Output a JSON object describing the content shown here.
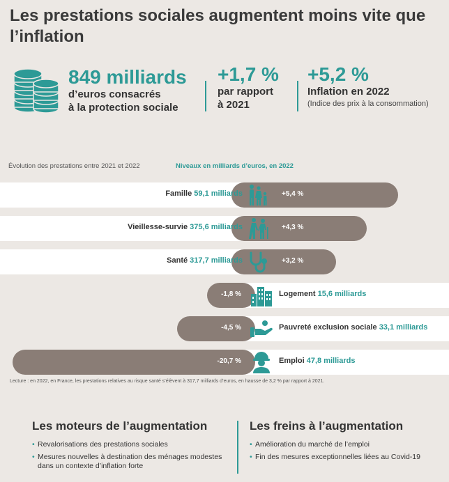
{
  "title": "Les prestations sociales augmentent moins vite que l’inflation",
  "kpi": {
    "total_value": "849 milliards",
    "total_sub1": "d’euros consacrés",
    "total_sub2": "à la protection sociale",
    "growth_value": "+1,7 %",
    "growth_sub1": "par rapport",
    "growth_sub2": "à 2021",
    "inflation_value": "+5,2 %",
    "inflation_sub": "Inflation en 2022",
    "inflation_note": "(Indice des prix à la consommation)"
  },
  "captions": {
    "left": "Évolution des prestations entre 2021 et 2022",
    "right": "Niveaux en milliards d’euros, en 2022"
  },
  "chart_data": {
    "type": "bar",
    "categories": [
      "Famille",
      "Vieillesse-survie",
      "Santé",
      "Logement",
      "Pauvreté exclusion sociale",
      "Emploi"
    ],
    "amounts": [
      "59,1 milliards",
      "375,6 milliards",
      "317,7 milliards",
      "15,6 milliards",
      "33,1 milliards",
      "47,8 milliards"
    ],
    "values": [
      5.4,
      4.3,
      3.2,
      -1.8,
      -4.5,
      -20.7
    ],
    "value_labels": [
      "+5,4 %",
      "+4,3 %",
      "+3,2 %",
      "-1,8 %",
      "-4,5 %",
      "-20,7 %"
    ],
    "icons": [
      "family-icon",
      "elderly-icon",
      "stethoscope-icon",
      "buildings-icon",
      "hand-icon",
      "worker-icon"
    ],
    "colors": {
      "bar": "#8a7d76",
      "accent": "#2d9a96",
      "strip": "#ffffff"
    }
  },
  "lecture": "Lecture : en 2022, en France, les prestations relatives au risque santé s’élèvent à 317,7 milliards d’euros, en hausse de 3,2 % par rapport à 2021.",
  "columns": {
    "left_title": "Les moteurs de l’augmentation",
    "left_items": [
      "Revalorisations des prestations sociales",
      "Mesures nouvelles à destination des ménages modestes dans un contexte d’inflation forte"
    ],
    "right_title": "Les freins à l’augmentation",
    "right_items": [
      "Amélioration du marché de l’emploi",
      "Fin des mesures exceptionnelles liées au Covid-19"
    ]
  }
}
